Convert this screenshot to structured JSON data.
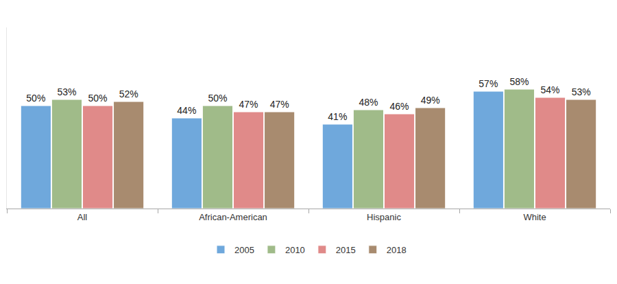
{
  "chart_data": {
    "type": "bar",
    "categories": [
      "All",
      "African-American",
      "Hispanic",
      "White"
    ],
    "series": [
      {
        "name": "2005",
        "color": "#6fa8dc",
        "values": [
          50,
          44,
          41,
          57
        ],
        "value_labels": [
          "50%",
          "44%",
          "41%",
          "57%"
        ]
      },
      {
        "name": "2010",
        "color": "#a0bb89",
        "values": [
          53,
          50,
          48,
          58
        ],
        "value_labels": [
          "53%",
          "50%",
          "48%",
          "58%"
        ]
      },
      {
        "name": "2015",
        "color": "#e08a89",
        "values": [
          50,
          47,
          46,
          54
        ],
        "value_labels": [
          "50%",
          "47%",
          "46%",
          "54%"
        ]
      },
      {
        "name": "2018",
        "color": "#a88b6f",
        "values": [
          52,
          47,
          49,
          53
        ],
        "value_labels": [
          "52%",
          "47%",
          "49%",
          "53%"
        ]
      }
    ],
    "ylim": [
      0,
      88
    ],
    "yticks": [],
    "grid": false,
    "legend": "bottom",
    "data_labels": true,
    "tick_labels": "x"
  }
}
